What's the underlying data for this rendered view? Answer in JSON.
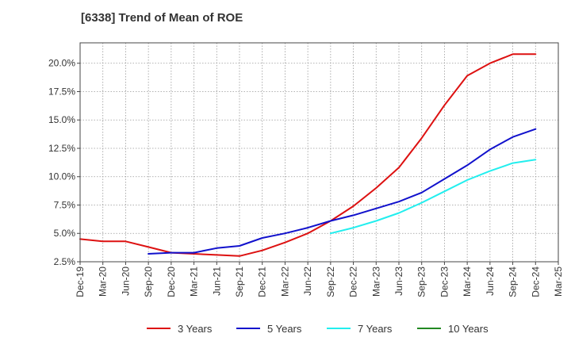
{
  "chart_data": {
    "type": "line",
    "title": "[6338]  Trend of Mean of ROE",
    "xlabel": "",
    "ylabel": "",
    "grid": true,
    "legend_position": "bottom",
    "x": [
      "Dec-19",
      "Mar-20",
      "Jun-20",
      "Sep-20",
      "Dec-20",
      "Mar-21",
      "Jun-21",
      "Sep-21",
      "Dec-21",
      "Mar-22",
      "Jun-22",
      "Sep-22",
      "Dec-22",
      "Mar-23",
      "Jun-23",
      "Sep-23",
      "Dec-23",
      "Mar-24",
      "Jun-24",
      "Sep-24",
      "Dec-24",
      "Mar-25"
    ],
    "ylim": [
      2.5,
      21.8
    ],
    "yticks": [
      2.5,
      5.0,
      7.5,
      10.0,
      12.5,
      15.0,
      17.5,
      20.0
    ],
    "ytick_labels": [
      "2.5%",
      "5.0%",
      "7.5%",
      "10.0%",
      "12.5%",
      "15.0%",
      "17.5%",
      "20.0%"
    ],
    "series": [
      {
        "name": "3 Years",
        "color": "#dd1111",
        "values": [
          4.5,
          4.3,
          4.3,
          3.8,
          3.3,
          3.2,
          3.1,
          3.0,
          3.5,
          4.2,
          5.0,
          6.1,
          7.4,
          9.0,
          10.8,
          13.4,
          16.3,
          18.9,
          20.0,
          20.8,
          20.8,
          null
        ]
      },
      {
        "name": "5 Years",
        "color": "#1111cc",
        "values": [
          null,
          null,
          null,
          3.2,
          3.3,
          3.3,
          3.7,
          3.9,
          4.6,
          5.0,
          5.5,
          6.1,
          6.6,
          7.2,
          7.8,
          8.6,
          9.8,
          11.0,
          12.4,
          13.5,
          14.2,
          null
        ]
      },
      {
        "name": "7 Years",
        "color": "#22eeee",
        "values": [
          null,
          null,
          null,
          null,
          null,
          null,
          null,
          null,
          null,
          null,
          null,
          5.0,
          5.5,
          6.1,
          6.8,
          7.7,
          8.7,
          9.7,
          10.5,
          11.2,
          11.5,
          null
        ]
      },
      {
        "name": "10 Years",
        "color": "#228822",
        "values": [
          null,
          null,
          null,
          null,
          null,
          null,
          null,
          null,
          null,
          null,
          null,
          null,
          null,
          null,
          null,
          null,
          null,
          null,
          null,
          null,
          null,
          null
        ]
      }
    ]
  }
}
